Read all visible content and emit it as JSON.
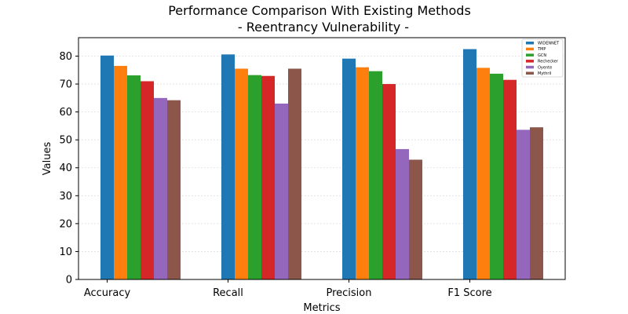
{
  "chart_data": {
    "type": "bar",
    "title": "Performance Comparison With Existing Methods",
    "subtitle": "- Reentrancy Vulnerability -",
    "xlabel": "Metrics",
    "ylabel": "Values",
    "categories": [
      "Accuracy",
      "Recall",
      "Precision",
      "F1 Score"
    ],
    "series": [
      {
        "name": "WIDENNET",
        "color": "#1f77b4",
        "values": [
          80.2,
          80.6,
          79.1,
          82.5
        ]
      },
      {
        "name": "TMP",
        "color": "#ff7f0e",
        "values": [
          76.5,
          75.5,
          76.0,
          75.8
        ]
      },
      {
        "name": "GCN",
        "color": "#2ca02c",
        "values": [
          73.1,
          73.2,
          74.6,
          73.7
        ]
      },
      {
        "name": "Rechecker",
        "color": "#d62728",
        "values": [
          71.0,
          72.9,
          70.0,
          71.5
        ]
      },
      {
        "name": "Oyente",
        "color": "#9467bd",
        "values": [
          65.0,
          63.0,
          46.7,
          53.6
        ]
      },
      {
        "name": "Mythril",
        "color": "#8c564b",
        "values": [
          64.2,
          75.5,
          42.9,
          54.5
        ]
      }
    ],
    "yticks": [
      0,
      10,
      20,
      30,
      40,
      50,
      60,
      70,
      80
    ],
    "ylim": [
      0,
      86.6
    ],
    "grid": true,
    "legend_position": "top-right"
  }
}
